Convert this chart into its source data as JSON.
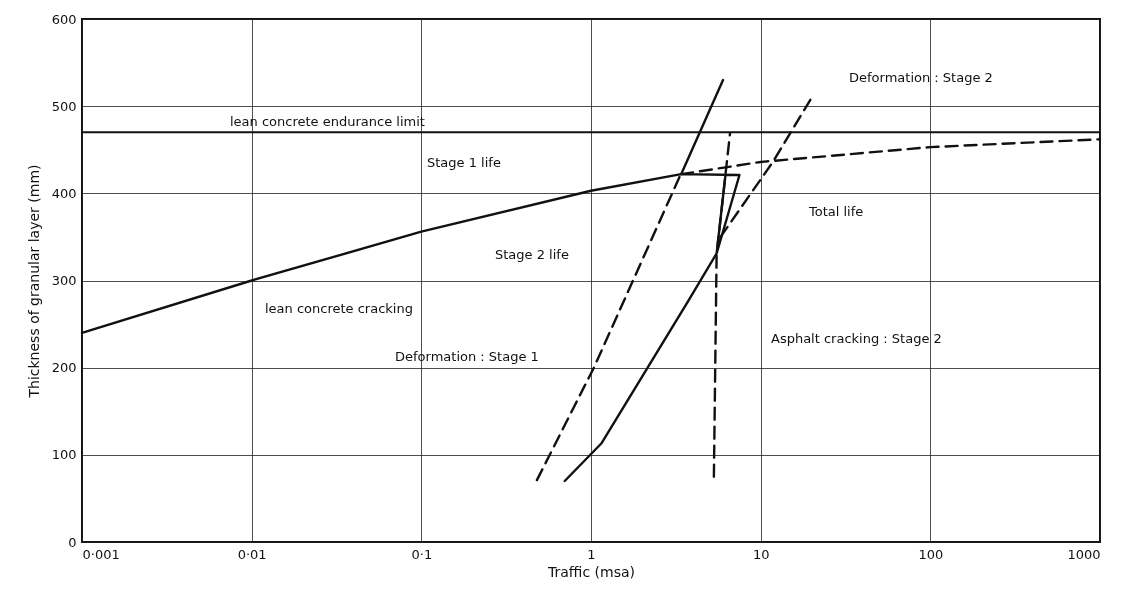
{
  "chart_data": {
    "type": "line",
    "xlabel": "Traffic (msa)",
    "ylabel": "Thickness of granular layer (mm)",
    "log": "x",
    "xlim": [
      0.001,
      1000
    ],
    "xticks": [
      {
        "value": 0.001,
        "label": "0·001"
      },
      {
        "value": 0.01,
        "label": "0·01"
      },
      {
        "value": 0.1,
        "label": "0·1"
      },
      1,
      10,
      100,
      1000
    ],
    "ylim": [
      0,
      600
    ],
    "yticks": [
      0,
      100,
      200,
      300,
      400,
      500,
      600
    ],
    "grid": true,
    "series": [
      {
        "color": "#111111",
        "line_style": "solid",
        "x": [
          0.001,
          0.01,
          0.1,
          1,
          3.4,
          6,
          3.4,
          7.5,
          6.2,
          5.5,
          6.2,
          7.5,
          5.5,
          3.7,
          1.15,
          0.7
        ],
        "values": [
          240,
          300,
          356,
          403,
          422,
          530,
          422,
          421,
          421,
          331,
          421,
          421,
          331,
          275,
          113,
          70
        ]
      },
      {
        "color": "#111111",
        "line_style": "dashed",
        "x": [
          3.4,
          10,
          100,
          1000
        ],
        "values": [
          422,
          436,
          453,
          462
        ]
      },
      {
        "color": "#111111",
        "line_style": "dashed",
        "x": [
          0.48,
          1.04,
          3.4
        ],
        "values": [
          71,
          200,
          423
        ]
      },
      {
        "color": "#111111",
        "line_style": "dashed",
        "x": [
          5.3,
          5.5,
          6.6
        ],
        "values": [
          75,
          330,
          469
        ]
      },
      {
        "color": "#111111",
        "line_style": "dashed",
        "x": [
          5.8,
          11.8,
          20
        ],
        "values": [
          350,
          436,
          510
        ]
      }
    ],
    "ref_lines": [
      {
        "axis": "y",
        "value": 470,
        "label": "lean concrete endurance limit",
        "color": "#111111"
      }
    ],
    "annotations": [
      "lean concrete cracking",
      "Stage 1 life",
      "Total life",
      "Stage 2 life",
      "Deformation : Stage 2",
      "Asphalt cracking : Stage 2",
      "Deformation : Stage 1"
    ]
  }
}
